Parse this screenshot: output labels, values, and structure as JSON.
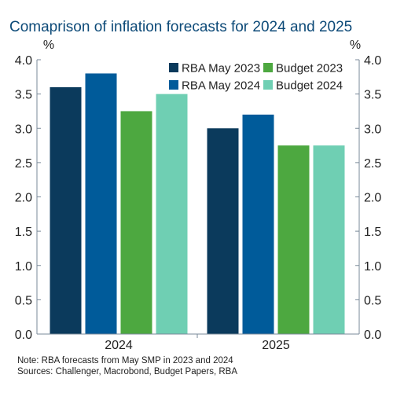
{
  "chart_data": {
    "type": "bar",
    "title": "Comaprison of inflation forecasts for 2024 and 2025",
    "unit_left": "%",
    "unit_right": "%",
    "categories": [
      "2024",
      "2025"
    ],
    "series": [
      {
        "name": "RBA May 2023",
        "color": "#0b3a5c",
        "values": [
          3.6,
          3.0
        ]
      },
      {
        "name": "RBA May 2024",
        "color": "#005b9a",
        "values": [
          3.8,
          3.2
        ]
      },
      {
        "name": "Budget 2023",
        "color": "#4da840",
        "values": [
          3.25,
          2.75
        ]
      },
      {
        "name": "Budget 2024",
        "color": "#6fcfb3",
        "values": [
          3.5,
          2.75
        ]
      }
    ],
    "ylim": [
      0,
      4
    ],
    "yticks": [
      "0.0",
      "0.5",
      "1.0",
      "1.5",
      "2.0",
      "2.5",
      "3.0",
      "3.5",
      "4.0"
    ],
    "legend_position": "top-right",
    "grid": false,
    "notes": [
      "Note: RBA forecasts from May SMP in 2023 and 2024",
      "Sources: Challenger, Macrobond, Budget Papers, RBA"
    ]
  }
}
